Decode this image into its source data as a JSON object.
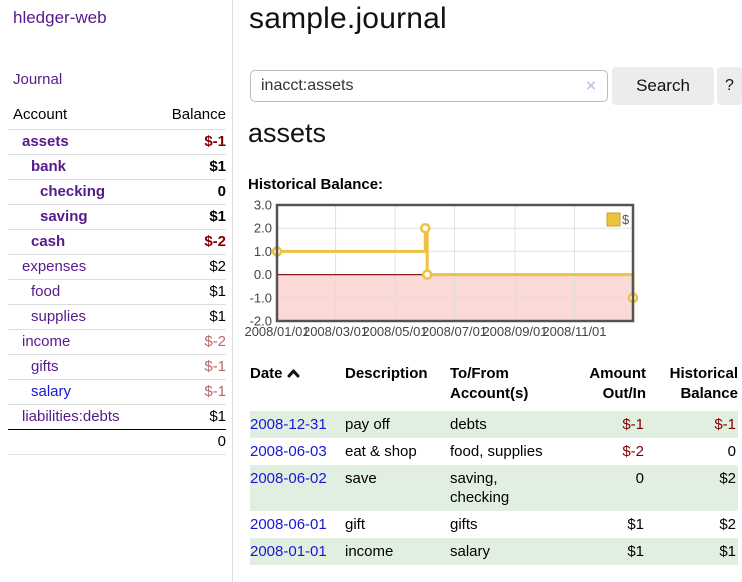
{
  "app": {
    "brand": "hledger-web"
  },
  "sidebar": {
    "nav": [
      {
        "label": "Journal"
      }
    ],
    "accounts_table": {
      "col_account": "Account",
      "col_balance": "Balance",
      "rows": [
        {
          "name": "assets",
          "indent": 1,
          "current": true,
          "balance": "$-1",
          "tone": "negative-strong",
          "link": "visited"
        },
        {
          "name": "bank",
          "indent": 2,
          "current": true,
          "balance": "$1",
          "tone": "normal",
          "link": "visited"
        },
        {
          "name": "checking",
          "indent": 3,
          "current": true,
          "balance": "0",
          "tone": "normal",
          "link": "visited"
        },
        {
          "name": "saving",
          "indent": 3,
          "current": true,
          "balance": "$1",
          "tone": "normal",
          "link": "visited"
        },
        {
          "name": "cash",
          "indent": 2,
          "current": true,
          "balance": "$-2",
          "tone": "negative-strong",
          "link": "visited"
        },
        {
          "name": "expenses",
          "indent": 1,
          "current": false,
          "balance": "$2",
          "tone": "normal",
          "link": "visited"
        },
        {
          "name": "food",
          "indent": 2,
          "current": false,
          "balance": "$1",
          "tone": "normal",
          "link": "visited"
        },
        {
          "name": "supplies",
          "indent": 2,
          "current": false,
          "balance": "$1",
          "tone": "normal",
          "link": "visited"
        },
        {
          "name": "income",
          "indent": 1,
          "current": false,
          "balance": "$-2",
          "tone": "negative-soft",
          "link": "visited"
        },
        {
          "name": "gifts",
          "indent": 2,
          "current": false,
          "balance": "$-1",
          "tone": "negative-soft",
          "link": "visited"
        },
        {
          "name": "salary",
          "indent": 2,
          "current": false,
          "balance": "$-1",
          "tone": "negative-soft",
          "link": "unvisited"
        },
        {
          "name": "liabilities:debts",
          "indent": 1,
          "current": false,
          "balance": "$1",
          "tone": "normal",
          "link": "visited"
        }
      ],
      "total": "0"
    }
  },
  "header": {
    "title": "sample.journal"
  },
  "search": {
    "value": "inacct:assets",
    "clear_icon": "×",
    "button_label": "Search",
    "help_label": "?"
  },
  "account_page": {
    "title": "assets",
    "chart_label": "Historical Balance:"
  },
  "chart_data": {
    "type": "line",
    "style": "step",
    "title": "Historical Balance:",
    "series": [
      {
        "name": "$",
        "color": "#edc240",
        "points": [
          [
            "2008-01-01",
            1.0
          ],
          [
            "2008-06-01",
            2.0
          ],
          [
            "2008-06-03",
            0.0
          ],
          [
            "2008-12-31",
            -1.0
          ]
        ]
      }
    ],
    "x_ticks": [
      "2008/01/01",
      "2008/03/01",
      "2008/05/01",
      "2008/07/01",
      "2008/09/01",
      "2008/11/01"
    ],
    "y_ticks": [
      "3.0",
      "2.0",
      "1.0",
      "0.0",
      "-1.0",
      "-2.0"
    ],
    "xlim": [
      "2008-01-01",
      "2008-12-31"
    ],
    "ylim": [
      -2.0,
      3.0
    ],
    "grid": true,
    "negative_region_shaded": true,
    "negative_region_color": "#fbd9d6",
    "zero_line_color": "#8b1a1a",
    "legend_position": "top-right"
  },
  "register_table": {
    "columns": [
      "Date",
      "Description",
      "To/From Account(s)",
      "Amount Out/In",
      "Historical Balance"
    ],
    "sort_column": "Date",
    "sort_direction": "ascending",
    "rows": [
      {
        "date": "2008-12-31",
        "description": "pay off",
        "accounts": "debts",
        "amount": "$-1",
        "amount_tone": "negative",
        "balance": "$-1",
        "balance_tone": "negative",
        "highlight": true
      },
      {
        "date": "2008-06-03",
        "description": "eat & shop",
        "accounts": "food, supplies",
        "amount": "$-2",
        "amount_tone": "negative",
        "balance": "0",
        "balance_tone": "normal",
        "highlight": false
      },
      {
        "date": "2008-06-02",
        "description": "save",
        "accounts": "saving, checking",
        "amount": "0",
        "amount_tone": "normal",
        "balance": "$2",
        "balance_tone": "normal",
        "highlight": true
      },
      {
        "date": "2008-06-01",
        "description": "gift",
        "accounts": "gifts",
        "amount": "$1",
        "amount_tone": "normal",
        "balance": "$2",
        "balance_tone": "normal",
        "highlight": false
      },
      {
        "date": "2008-01-01",
        "description": "income",
        "accounts": "salary",
        "amount": "$1",
        "amount_tone": "normal",
        "balance": "$1",
        "balance_tone": "normal",
        "highlight": true
      }
    ]
  },
  "colors": {
    "accent_purple": "#551a8b",
    "link_blue": "#1717d8",
    "negative_strong": "#800000",
    "negative_soft": "#b96a6a",
    "row_highlight_green": "#e1efe1",
    "series_gold": "#edc240",
    "negative_region_pink": "#fbd9d6",
    "zero_line_red": "#8b1a1a",
    "button_gray": "#ececec"
  }
}
